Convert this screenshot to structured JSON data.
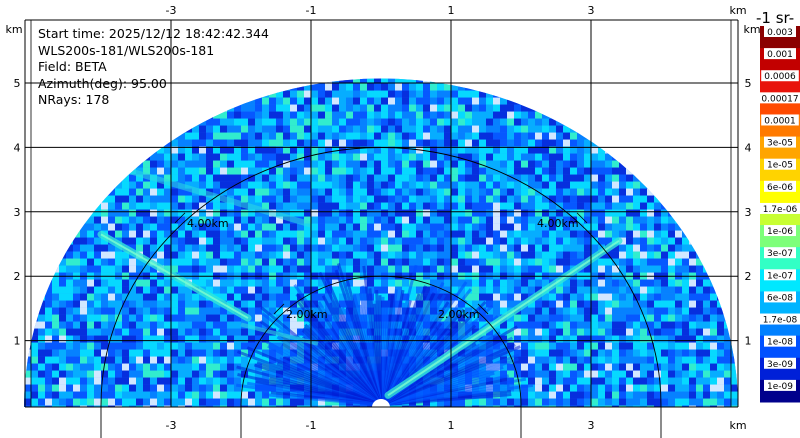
{
  "header": {
    "start_time": "Start time: 2025/12/12 18:42:42.344",
    "instrument": "WLS200s-181/WLS200s-181",
    "field": "Field: BETA",
    "azimuth": "Azimuth(deg): 95.00",
    "nrays": "NRays: 178"
  },
  "chart_data": {
    "type": "heatmap",
    "subtype": "lidar-rhi-scan",
    "x_ticks": [
      "-3",
      "-1",
      "1",
      "3"
    ],
    "y_ticks": [
      "1",
      "2",
      "3",
      "4",
      "5"
    ],
    "x_unit": "km",
    "y_unit": "km",
    "x_range": [
      -5.0,
      5.0
    ],
    "y_range": [
      0,
      6.0
    ],
    "max_range_km": 5.1,
    "range_rings": [
      {
        "radius_km": 2.0,
        "label": "2.00km"
      },
      {
        "radius_km": 4.0,
        "label": "4.00km"
      }
    ],
    "n_rays": 178,
    "colorbar": {
      "title": "-1 sr-",
      "labels": [
        "0.003",
        "0.001",
        "0.0006",
        "0.00017",
        "0.0001",
        "3e-05",
        "1e-05",
        "6e-06",
        "1.7e-06",
        "1e-06",
        "3e-07",
        "1e-07",
        "6e-08",
        "1.7e-08",
        "1e-08",
        "3e-09",
        "1e-09"
      ],
      "colors": [
        "#8b0000",
        "#c20000",
        "#e8140c",
        "#ff4a00",
        "#ff7a00",
        "#ffa500",
        "#ffd300",
        "#ffff00",
        "#c8ff32",
        "#7dff7a",
        "#32ffc5",
        "#00e8ff",
        "#00b4ff",
        "#0080ff",
        "#0050ff",
        "#0020d8",
        "#00008c"
      ]
    },
    "features": [
      {
        "name": "aerosol-layer-left",
        "from_km": [
          -4.0,
          2.65
        ],
        "to_km": [
          -1.9,
          1.35
        ]
      },
      {
        "name": "aerosol-layer-right",
        "from_km": [
          0.1,
          0.15
        ],
        "to_km": [
          3.4,
          2.55
        ]
      }
    ]
  }
}
